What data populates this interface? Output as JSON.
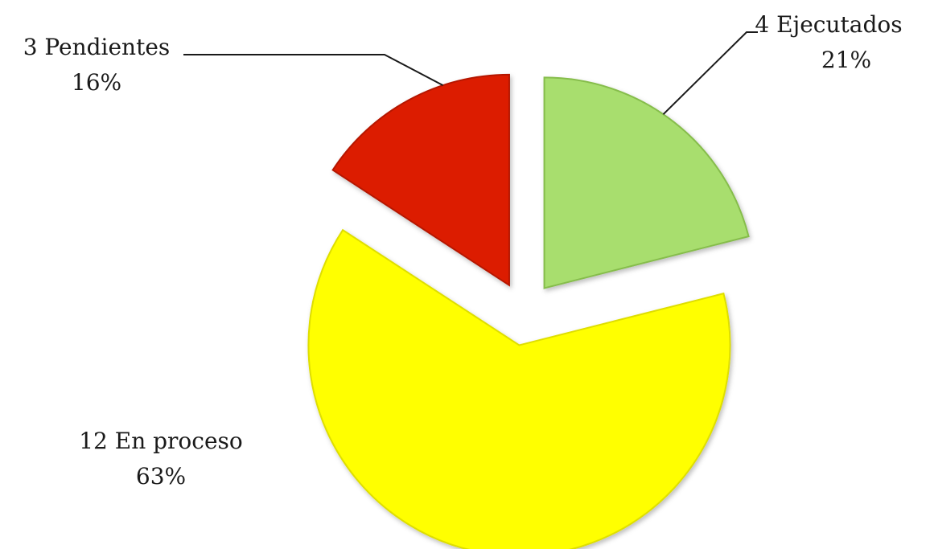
{
  "chart_data": {
    "type": "pie",
    "exploded": true,
    "legend": "none",
    "slices": [
      {
        "category": "Ejecutados",
        "count": 4,
        "percent": 21,
        "color": "#a8de6e",
        "edge": "#86bd4c",
        "label_line1": "4 Ejecutados",
        "label_line2": "21%",
        "leader_line": true
      },
      {
        "category": "En proceso",
        "count": 12,
        "percent": 63,
        "color": "#ffff00",
        "edge": "#dede00",
        "label_line1": "12 En proceso",
        "label_line2": "63%",
        "leader_line": false
      },
      {
        "category": "Pendientes",
        "count": 3,
        "percent": 16,
        "color": "#dc1f00",
        "edge": "#b51800",
        "label_line1": "3 Pendientes",
        "label_line2": "16%",
        "leader_line": true
      }
    ]
  }
}
